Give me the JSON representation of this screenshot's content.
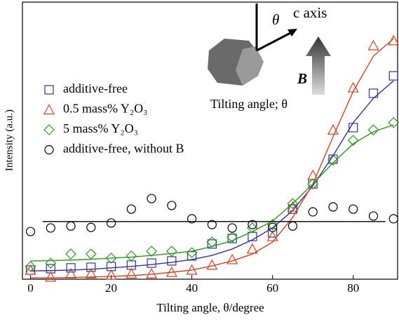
{
  "chart_data": {
    "type": "scatter",
    "xlabel": "Tilting angle, θ/degree",
    "ylabel": "Intensity (a.u.)",
    "xlim": [
      -2,
      91
    ],
    "ylim": [
      0,
      100
    ],
    "xticks": [
      0,
      20,
      40,
      60,
      80
    ],
    "x": [
      0,
      5,
      10,
      15,
      20,
      25,
      30,
      35,
      40,
      45,
      50,
      55,
      60,
      65,
      70,
      75,
      80,
      85,
      90
    ],
    "annotations": [
      "θ",
      "c axis",
      "B",
      "Tilting angle; θ"
    ],
    "series": [
      {
        "name": "additive-free",
        "color": "#33339a",
        "marker": "square",
        "values": [
          3.3,
          3.8,
          4.1,
          4.3,
          4.6,
          5.1,
          5.8,
          6.6,
          8.4,
          12.7,
          14.7,
          15.4,
          16.7,
          25.3,
          34.4,
          43.3,
          54.7,
          67.1,
          73.4
        ]
      },
      {
        "name": "0.5 mass% Y₂O₃",
        "color": "#d9401f",
        "marker": "triangle",
        "values": [
          3.3,
          0.8,
          2.0,
          2.0,
          1.5,
          2.0,
          2.0,
          2.5,
          3.3,
          5.1,
          7.1,
          10.9,
          15.4,
          26.1,
          37.5,
          53.9,
          69.1,
          84.3,
          86.1
        ]
      },
      {
        "name": "5 mass% Y₂O₃",
        "color": "#2a9a1a",
        "marker": "diamond",
        "values": [
          4.6,
          5.8,
          9.1,
          9.1,
          7.6,
          8.4,
          10.1,
          10.1,
          9.6,
          13.4,
          15.2,
          18.5,
          19.7,
          27.3,
          34.4,
          43.0,
          50.1,
          53.9,
          56.5
        ]
      },
      {
        "name": "additive-free, without B",
        "color": "#000000",
        "marker": "circle",
        "values": [
          17.2,
          18.5,
          19.2,
          18.7,
          20.3,
          25.3,
          29.1,
          26.6,
          21.8,
          19.7,
          18.5,
          19.7,
          18.7,
          19.2,
          24.3,
          26.1,
          25.3,
          22.8,
          21.8
        ]
      },
      {
        "color": "#33339a",
        "marker": "line",
        "x": [
          0,
          5,
          10,
          15,
          20,
          25,
          30,
          35,
          40,
          45,
          50,
          55,
          60,
          65,
          70,
          75,
          80,
          85,
          90
        ],
        "values": [
          3.0,
          3.1,
          3.3,
          3.6,
          4.1,
          4.6,
          5.3,
          6.1,
          7.1,
          8.6,
          10.9,
          14.2,
          18.5,
          24.8,
          33.7,
          44.6,
          56.5,
          65.3,
          71.6
        ]
      },
      {
        "color": "#d9401f",
        "marker": "line",
        "x": [
          0,
          5,
          10,
          15,
          20,
          25,
          30,
          35,
          40,
          45,
          50,
          55,
          60,
          65,
          70,
          75,
          80,
          85,
          90
        ],
        "values": [
          0.5,
          0.5,
          0.6,
          0.8,
          1.0,
          1.3,
          1.8,
          2.5,
          3.3,
          4.8,
          6.6,
          9.1,
          13.4,
          22.3,
          34.4,
          51.4,
          67.8,
          80.5,
          86.8
        ]
      },
      {
        "color": "#2a9a1a",
        "marker": "line",
        "x": [
          0,
          5,
          10,
          15,
          20,
          25,
          30,
          35,
          40,
          45,
          50,
          55,
          60,
          65,
          70,
          75,
          80,
          85,
          90
        ],
        "values": [
          6.6,
          6.7,
          6.9,
          7.2,
          7.6,
          8.0,
          8.6,
          9.3,
          10.1,
          11.8,
          13.9,
          17.2,
          21.0,
          27.3,
          34.4,
          42.0,
          48.9,
          53.2,
          55.7
        ]
      },
      {
        "color": "#000000",
        "marker": "line",
        "x": [
          3,
          88
        ],
        "values": [
          20.8,
          20.8
        ]
      }
    ]
  }
}
